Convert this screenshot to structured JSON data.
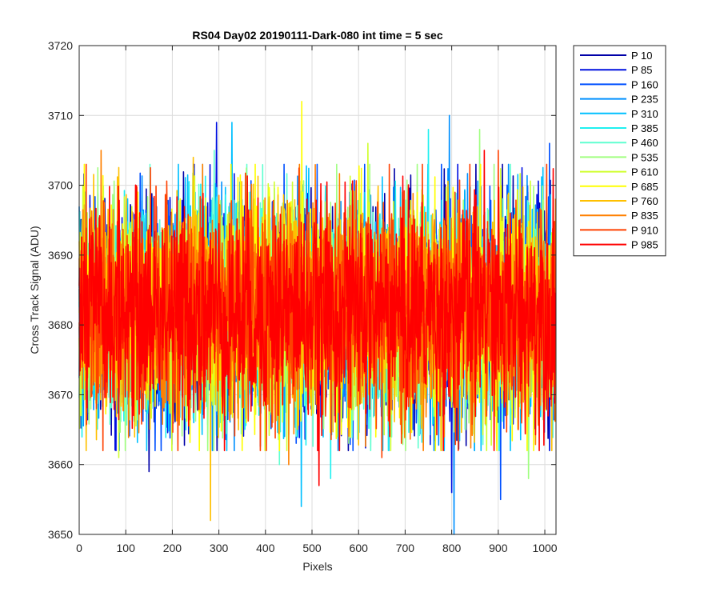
{
  "chart_data": {
    "type": "line",
    "title": "RS04 Day02 20190111-Dark-080 int time = 5 sec",
    "xlabel": "Pixels",
    "ylabel": "Cross Track Signal (ADU)",
    "xlim": [
      0,
      1024
    ],
    "ylim": [
      3650,
      3720
    ],
    "xticks": [
      0,
      100,
      200,
      300,
      400,
      500,
      600,
      700,
      800,
      900,
      1000
    ],
    "yticks": [
      3650,
      3660,
      3670,
      3680,
      3690,
      3700,
      3710,
      3720
    ],
    "grid": true,
    "legend_position": "outside-top-right",
    "noise": {
      "mean": 3682,
      "sigma": 7.5,
      "points_per_series": 1024
    },
    "series": [
      {
        "name": "P 10",
        "color": "#0000a8",
        "peak": {
          "x": 150,
          "y": 3708
        },
        "dip": {
          "x": 150,
          "y": 3659
        }
      },
      {
        "name": "P 85",
        "color": "#0010e0",
        "peak": {
          "x": 295,
          "y": 3709
        },
        "dip": {
          "x": 800,
          "y": 3656
        }
      },
      {
        "name": "P 160",
        "color": "#0050ff",
        "peak": {
          "x": 1010,
          "y": 3706
        },
        "dip": {
          "x": 905,
          "y": 3655
        }
      },
      {
        "name": "P 235",
        "color": "#0090ff",
        "peak": {
          "x": 795,
          "y": 3710
        },
        "dip": {
          "x": 805,
          "y": 3650
        }
      },
      {
        "name": "P 310",
        "color": "#00c0ff",
        "peak": {
          "x": 328,
          "y": 3709
        },
        "dip": {
          "x": 477,
          "y": 3654
        }
      },
      {
        "name": "P 385",
        "color": "#20f0f0",
        "peak": {
          "x": 750,
          "y": 3708
        },
        "dip": {
          "x": 540,
          "y": 3658
        }
      },
      {
        "name": "P 460",
        "color": "#60ffd0",
        "peak": {
          "x": 290,
          "y": 3705
        },
        "dip": {
          "x": 430,
          "y": 3660
        }
      },
      {
        "name": "P 535",
        "color": "#a0ff80",
        "peak": {
          "x": 860,
          "y": 3708
        },
        "dip": {
          "x": 965,
          "y": 3658
        }
      },
      {
        "name": "P 610",
        "color": "#d0ff30",
        "peak": {
          "x": 620,
          "y": 3706
        },
        "dip": {
          "x": 85,
          "y": 3661
        }
      },
      {
        "name": "P 685",
        "color": "#ffff00",
        "peak": {
          "x": 478,
          "y": 3712
        },
        "dip": {
          "x": 350,
          "y": 3662
        }
      },
      {
        "name": "P 760",
        "color": "#ffc000",
        "peak": {
          "x": 245,
          "y": 3704
        },
        "dip": {
          "x": 282,
          "y": 3652
        }
      },
      {
        "name": "P 835",
        "color": "#ff8000",
        "peak": {
          "x": 47,
          "y": 3705
        },
        "dip": {
          "x": 450,
          "y": 3660
        }
      },
      {
        "name": "P 910",
        "color": "#ff4000",
        "peak": {
          "x": 900,
          "y": 3705
        },
        "dip": {
          "x": 650,
          "y": 3661
        }
      },
      {
        "name": "P 985",
        "color": "#ff0000",
        "peak": {
          "x": 870,
          "y": 3705
        },
        "dip": {
          "x": 515,
          "y": 3657
        }
      }
    ]
  }
}
